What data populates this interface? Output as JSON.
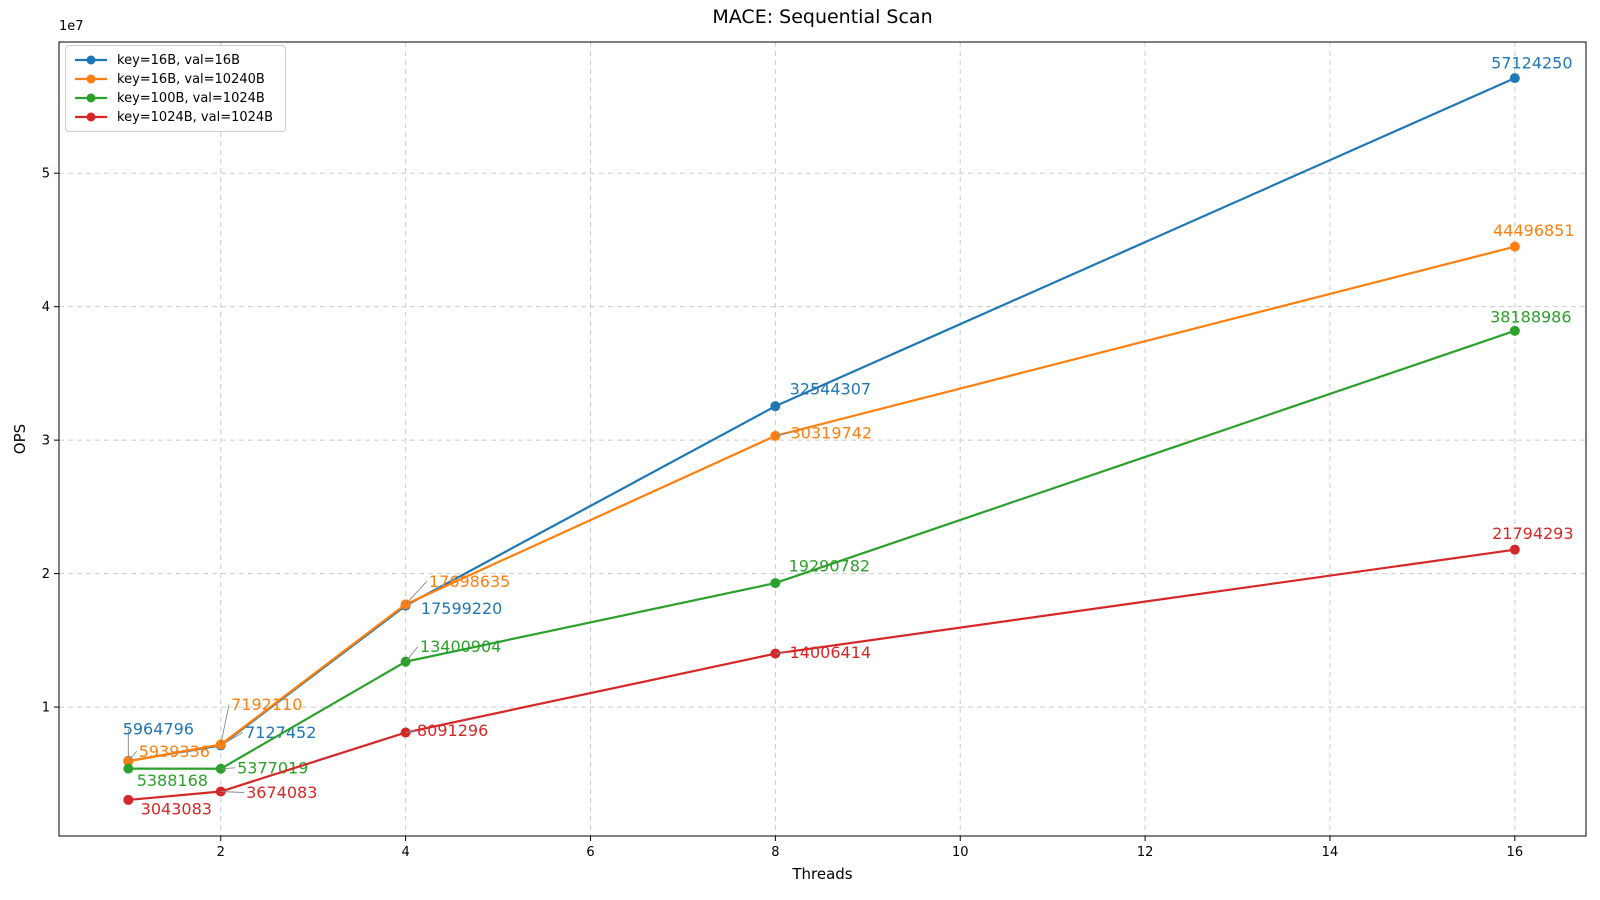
{
  "chart_data": {
    "type": "line",
    "title": "MACE: Sequential Scan",
    "xlabel": "Threads",
    "ylabel": "OPS",
    "offset_text": "1e7",
    "x": [
      1,
      2,
      4,
      8,
      16
    ],
    "series": [
      {
        "name": "key=16B, val=16B",
        "color": "#1f77b4",
        "values": [
          5964796,
          7127452,
          17599220,
          32544307,
          57124250
        ]
      },
      {
        "name": "key=16B, val=10240B",
        "color": "#ff7f0e",
        "values": [
          5939336,
          7192110,
          17698635,
          30319742,
          44496851
        ]
      },
      {
        "name": "key=100B, val=1024B",
        "color": "#2ca02c",
        "values": [
          5388168,
          5377019,
          13400904,
          19290782,
          38188986
        ]
      },
      {
        "name": "key=1024B, val=1024B",
        "color": "#d62728",
        "values": [
          3043083,
          3674083,
          8091296,
          14006414,
          21794293
        ]
      }
    ],
    "xlim": [
      0.25,
      16.77
    ],
    "ylim": [
      340000,
      59830000
    ],
    "xticks": [
      2,
      4,
      6,
      8,
      10,
      12,
      14,
      16
    ],
    "yticks": [
      10000000,
      20000000,
      30000000,
      40000000,
      50000000
    ],
    "ytick_labels": [
      "1",
      "2",
      "3",
      "4",
      "5"
    ],
    "grid": true,
    "legend_position": "upper left",
    "annotations": {
      "offsets": [
        [
          [
            30,
            -32,
            1
          ],
          [
            60,
            -13,
            1
          ],
          [
            56,
            3,
            0
          ],
          [
            55,
            -17,
            0
          ],
          [
            17,
            -15,
            0
          ]
        ],
        [
          [
            46,
            -10,
            1
          ],
          [
            46,
            -40,
            1
          ],
          [
            64,
            -23,
            1
          ],
          [
            56,
            -3,
            1
          ],
          [
            19,
            -16,
            0
          ]
        ],
        [
          [
            44,
            12,
            0
          ],
          [
            52,
            -1,
            1
          ],
          [
            55,
            -15,
            1
          ],
          [
            54,
            -17,
            0
          ],
          [
            16,
            -14,
            0
          ]
        ],
        [
          [
            48,
            9,
            0
          ],
          [
            61,
            1,
            1
          ],
          [
            47,
            -2,
            1
          ],
          [
            55,
            -1,
            1
          ],
          [
            18,
            -16,
            0
          ]
        ]
      ]
    }
  },
  "colors": {
    "grid": "#cccccc",
    "spine": "#000000",
    "leader": "#888888",
    "background": "#ffffff"
  }
}
